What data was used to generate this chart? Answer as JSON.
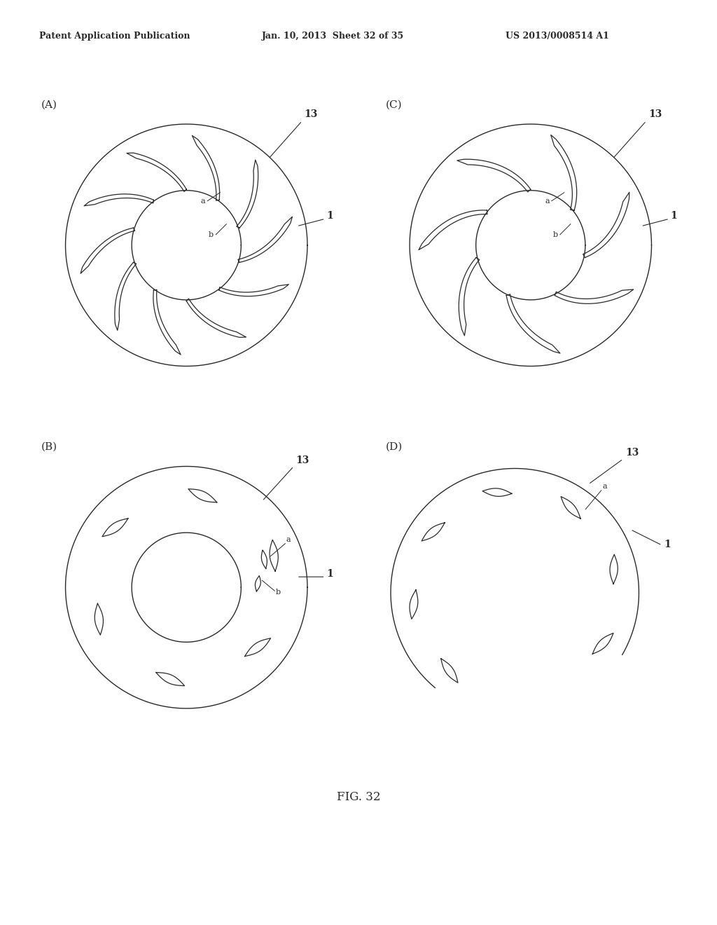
{
  "title": "FIG. 32",
  "header_left": "Patent Application Publication",
  "header_mid": "Jan. 10, 2013  Sheet 32 of 35",
  "header_right": "US 2013/0008514 A1",
  "bg_color": "#ffffff",
  "line_color": "#2a2a2a",
  "lw": 1.0
}
